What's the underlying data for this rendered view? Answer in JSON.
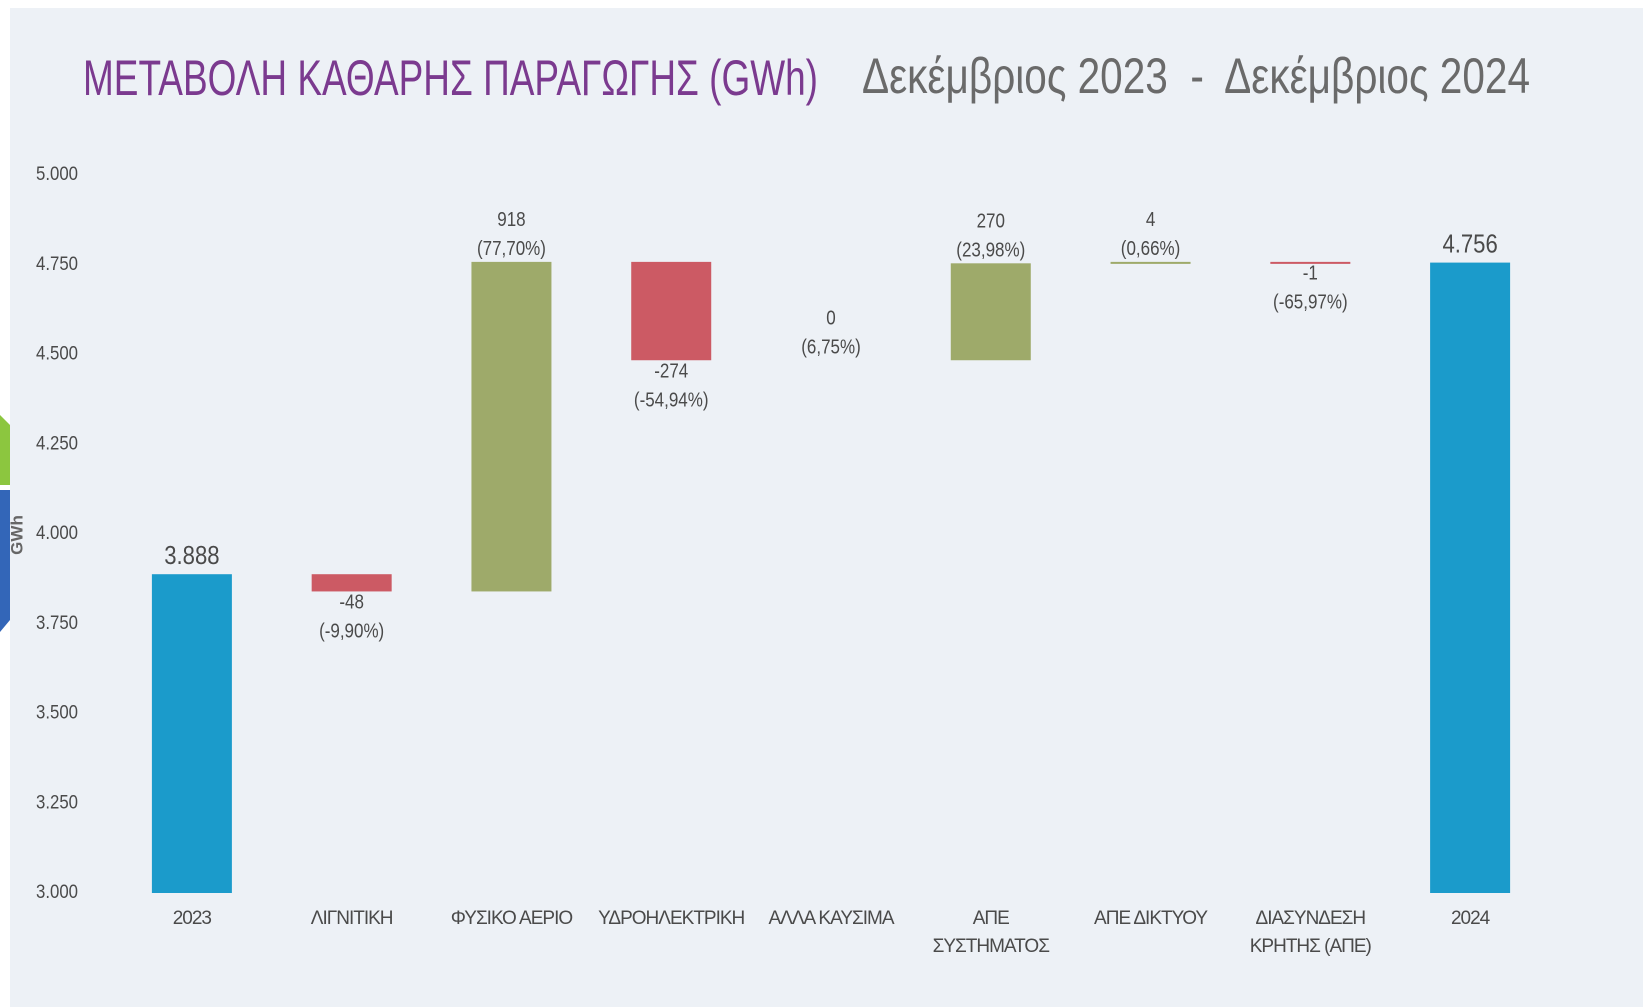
{
  "chart_data": {
    "type": "waterfall",
    "title": "ΜΕΤΑΒΟΛΗ ΚΑΘΑΡΗΣ ΠΑΡΑΓΩΓΗΣ (GWh)",
    "subtitle": "Δεκέμβριος 2023  -  Δεκέμβριος 2024",
    "y_label": "GWh",
    "categories": [
      "2023",
      "ΛΙΓΝΙΤΙΚΗ",
      "ΦΥΣΙΚΟ ΑΕΡΙΟ",
      "ΥΔΡΟΗΛΕΚΤΡΙΚΗ",
      "ΑΛΛΑ ΚΑΥΣΙΜΑ",
      "ΑΠΕ ΣΥΣΤΗΜΑΤΟΣ",
      "ΑΠΕ ΔΙΚΤΥΟΥ",
      "ΔΙΑΣΥΝΔΕΣΗ ΚΡΗΤΗΣ (ΑΠΕ)",
      "2024"
    ],
    "measures": [
      "absolute",
      "relative",
      "relative",
      "relative",
      "relative",
      "relative",
      "relative",
      "relative",
      "total"
    ],
    "values": [
      3888,
      -48,
      918,
      -274,
      0,
      270,
      4,
      -1,
      4756
    ],
    "value_labels": [
      "3.888",
      "-48",
      "918",
      "-274",
      "0",
      "270",
      "4",
      "-1",
      "4.756"
    ],
    "percent_labels": [
      null,
      "(-9,90%)",
      "(77,70%)",
      "(-54,94%)",
      "(6,75%)",
      "(23,98%)",
      "(0,66%)",
      "(-65,97%)",
      null
    ],
    "colors": {
      "total": "#1b9bcb",
      "increase": "#9eaa6a",
      "decrease": "#cc5a64"
    },
    "ylim": [
      3000,
      5000
    ],
    "yticks": [
      {
        "value": 3000,
        "label": "3.000"
      },
      {
        "value": 3250,
        "label": "3.250"
      },
      {
        "value": 3500,
        "label": "3.500"
      },
      {
        "value": 3750,
        "label": "3.750"
      },
      {
        "value": 4000,
        "label": "4.000"
      },
      {
        "value": 4250,
        "label": "4.250"
      },
      {
        "value": 4500,
        "label": "4.500"
      },
      {
        "value": 4750,
        "label": "4.750"
      },
      {
        "value": 5000,
        "label": "5.000"
      }
    ],
    "grid": false
  }
}
